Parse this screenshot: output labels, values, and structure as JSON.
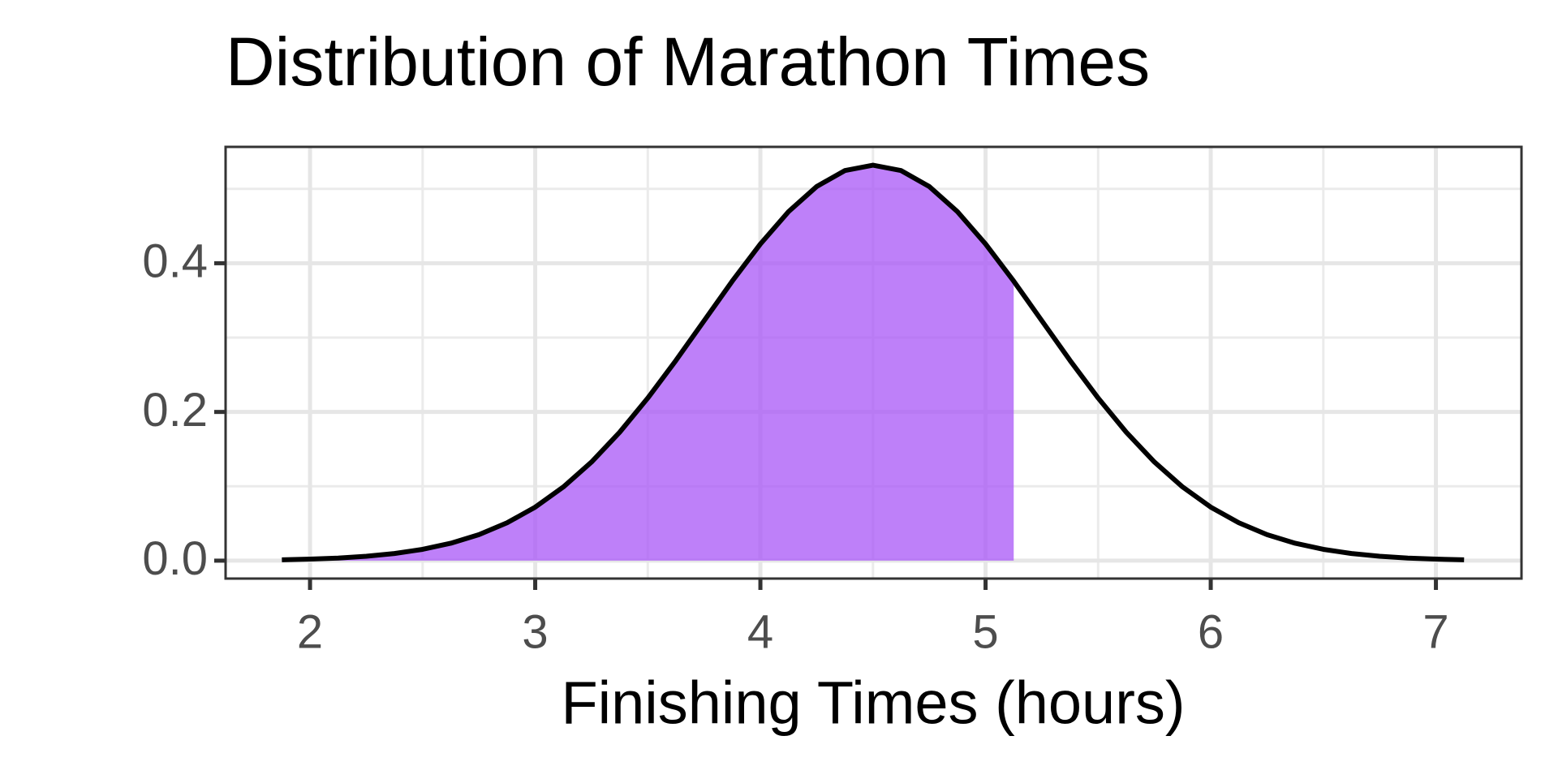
{
  "chart_data": {
    "type": "line",
    "title": "Distribution of Marathon Times",
    "xlabel": "Finishing Times (hours)",
    "x": [
      1.875,
      2.0,
      2.125,
      2.25,
      2.375,
      2.5,
      2.625,
      2.75,
      2.875,
      3.0,
      3.125,
      3.25,
      3.375,
      3.5,
      3.625,
      3.75,
      3.875,
      4.0,
      4.125,
      4.25,
      4.375,
      4.5,
      4.625,
      4.75,
      4.875,
      5.0,
      5.125,
      5.25,
      5.375,
      5.5,
      5.625,
      5.75,
      5.875,
      6.0,
      6.125,
      6.25,
      6.375,
      6.5,
      6.625,
      6.75,
      6.875,
      7.0,
      7.125
    ],
    "series": [
      {
        "color": "#000000",
        "values": [
          0.0012,
          0.0021,
          0.0035,
          0.0059,
          0.0096,
          0.0152,
          0.0234,
          0.035,
          0.0509,
          0.072,
          0.0991,
          0.1326,
          0.1727,
          0.2187,
          0.2693,
          0.3226,
          0.3759,
          0.4259,
          0.4694,
          0.5032,
          0.5246,
          0.5319,
          0.5246,
          0.5032,
          0.4694,
          0.4259,
          0.3759,
          0.3226,
          0.2693,
          0.2187,
          0.1727,
          0.1326,
          0.0991,
          0.072,
          0.0509,
          0.035,
          0.0234,
          0.0152,
          0.0096,
          0.0059,
          0.0035,
          0.0021,
          0.0012
        ]
      }
    ],
    "area": {
      "color": "#a855f7",
      "opacity": 0.75,
      "values": [
        0.0012,
        0.0021,
        0.0035,
        0.0059,
        0.0096,
        0.0152,
        0.0234,
        0.035,
        0.0509,
        0.072,
        0.0991,
        0.1326,
        0.1727,
        0.2187,
        0.2693,
        0.3226,
        0.3759,
        0.4259,
        0.4694,
        0.5032,
        0.5246,
        0.5319,
        0.5246,
        0.5032,
        0.4694,
        0.4259,
        0.3759,
        null,
        null,
        null,
        null,
        null,
        null,
        null,
        null,
        null,
        null,
        null,
        null,
        null,
        null,
        null,
        null
      ]
    },
    "xlim": [
      1.625,
      7.38
    ],
    "ylim": [
      -0.0241,
      0.5565
    ],
    "xticks": [
      2,
      3,
      4,
      5,
      6,
      7
    ],
    "yticks": [
      {
        "value": 0,
        "label": "0.0"
      },
      {
        "value": 0.2,
        "label": "0.2"
      },
      {
        "value": 0.4,
        "label": "0.4"
      }
    ],
    "minor_xgrid": [
      2.5,
      3.5,
      4.5,
      5.5,
      6.5
    ],
    "minor_ygrid": [
      0.1,
      0.3,
      0.5
    ],
    "grid": true
  }
}
